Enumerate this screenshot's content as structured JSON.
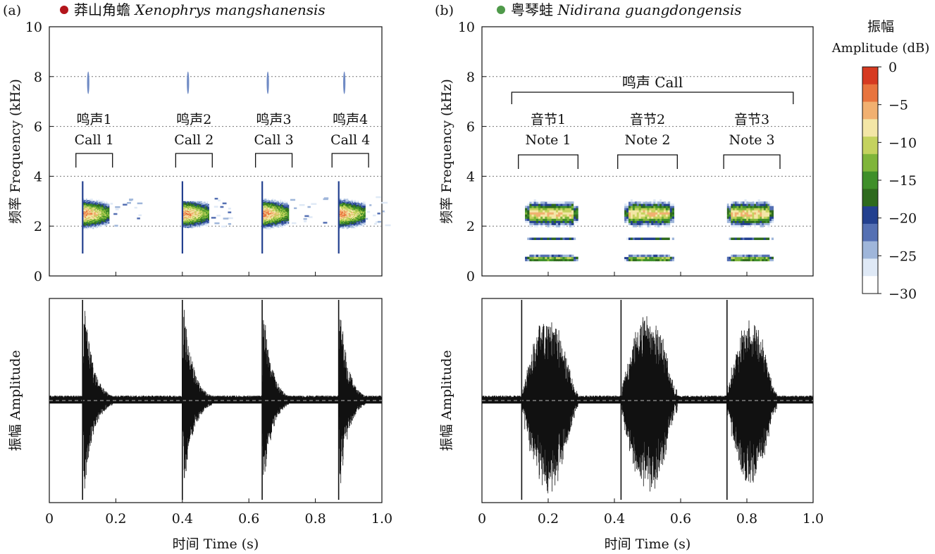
{
  "chart_data": [
    {
      "panel_label": "(a)",
      "dot_color": "#b3151b",
      "title_cn": "莽山角蟾",
      "title_latin": "Xenophrys mangshanensis",
      "spectrogram": {
        "type": "heatmap",
        "ylabel": "频率 Frequency (kHz)",
        "ylim": [
          0,
          10
        ],
        "yticks": [
          "0",
          "2",
          "4",
          "6",
          "8",
          "10"
        ],
        "xlim": [
          0,
          1.0
        ],
        "blobs": [
          {
            "x0": 0.1,
            "x1": 0.18,
            "flo": 1.8,
            "fhi": 3.1,
            "fpeak": 2.5,
            "tail": 0.09
          },
          {
            "x0": 0.4,
            "x1": 0.48,
            "flo": 1.9,
            "fhi": 3.0,
            "fpeak": 2.5,
            "tail": 0.06
          },
          {
            "x0": 0.64,
            "x1": 0.72,
            "flo": 1.8,
            "fhi": 3.1,
            "fpeak": 2.5,
            "tail": 0.12
          },
          {
            "x0": 0.87,
            "x1": 0.95,
            "flo": 1.8,
            "fhi": 3.1,
            "fpeak": 2.5,
            "tail": 0.06
          }
        ],
        "spikes": [
          0.1,
          0.4,
          0.64,
          0.87
        ],
        "groups": [
          {
            "cn": "鸣声1",
            "en": "Call 1",
            "x0": 0.08,
            "x1": 0.19
          },
          {
            "cn": "鸣声2",
            "en": "Call 2",
            "x0": 0.38,
            "x1": 0.49
          },
          {
            "cn": "鸣声3",
            "en": "Call 3",
            "x0": 0.62,
            "x1": 0.73
          },
          {
            "cn": "鸣声4",
            "en": "Call 4",
            "x0": 0.85,
            "x1": 0.96
          }
        ]
      },
      "waveform": {
        "type": "line",
        "ylabel": "振幅 Amplitude",
        "xlabel": "时间 Time (s)",
        "xlim": [
          0,
          1.0
        ],
        "xticks": [
          "0",
          "0.2",
          "0.4",
          "0.6",
          "0.8",
          "1.0"
        ],
        "events": [
          {
            "start": 0.1,
            "end": 0.19,
            "peak": 1.0,
            "neg": 0.95
          },
          {
            "start": 0.4,
            "end": 0.49,
            "peak": 0.97,
            "neg": 0.92
          },
          {
            "start": 0.64,
            "end": 0.72,
            "peak": 0.98,
            "neg": 0.96
          },
          {
            "start": 0.87,
            "end": 0.95,
            "peak": 0.98,
            "neg": 0.93
          }
        ]
      }
    },
    {
      "panel_label": "(b)",
      "dot_color": "#4f9a4a",
      "title_cn": "粤琴蛙",
      "title_latin": "Nidirana guangdongensis",
      "spectrogram": {
        "type": "heatmap",
        "ylabel": "频率 Frequency (kHz)",
        "ylim": [
          0,
          10
        ],
        "yticks": [
          "0",
          "2",
          "4",
          "6",
          "8",
          "10"
        ],
        "xlim": [
          0,
          1.0
        ],
        "blobs": [
          {
            "x0": 0.13,
            "x1": 0.29,
            "flo": 0.6,
            "fhi": 3.5,
            "fpeak": 2.5,
            "tail": 0
          },
          {
            "x0": 0.43,
            "x1": 0.58,
            "flo": 0.6,
            "fhi": 3.5,
            "fpeak": 2.5,
            "tail": 0
          },
          {
            "x0": 0.74,
            "x1": 0.88,
            "flo": 0.6,
            "fhi": 3.5,
            "fpeak": 2.5,
            "tail": 0
          }
        ],
        "spikes": [],
        "call_bracket": {
          "label": "鸣声 Call",
          "x0": 0.09,
          "x1": 0.94
        },
        "groups": [
          {
            "cn": "音节1",
            "en": "Note 1",
            "x0": 0.11,
            "x1": 0.29
          },
          {
            "cn": "音节2",
            "en": "Note 2",
            "x0": 0.41,
            "x1": 0.59
          },
          {
            "cn": "音节3",
            "en": "Note 3",
            "x0": 0.73,
            "x1": 0.9
          }
        ]
      },
      "waveform": {
        "type": "line",
        "ylabel": "振幅 Amplitude",
        "xlabel": "时间 Time (s)",
        "xlim": [
          0,
          1.0
        ],
        "xticks": [
          "0",
          "0.2",
          "0.4",
          "0.6",
          "0.8",
          "1.0"
        ],
        "events": [
          {
            "start": 0.12,
            "end": 0.29,
            "peak": 0.86,
            "neg": 0.95
          },
          {
            "start": 0.42,
            "end": 0.59,
            "peak": 0.95,
            "neg": 0.98
          },
          {
            "start": 0.74,
            "end": 0.89,
            "peak": 0.85,
            "neg": 0.92
          }
        ]
      }
    }
  ],
  "colorbar": {
    "title_cn": "振幅",
    "title_en": "Amplitude (dB)",
    "ticks": [
      "0",
      "−5",
      "−10",
      "−15",
      "−20",
      "−25",
      "−30"
    ],
    "range": [
      -30,
      0
    ],
    "stops": [
      "#ffffff",
      "#dfe9f6",
      "#9fb6da",
      "#5570b3",
      "#23408f",
      "#2e6a1e",
      "#3f8f2a",
      "#7fb53a",
      "#c4d25e",
      "#f3e6a6",
      "#f1b070",
      "#e8743e",
      "#d63a21"
    ]
  }
}
